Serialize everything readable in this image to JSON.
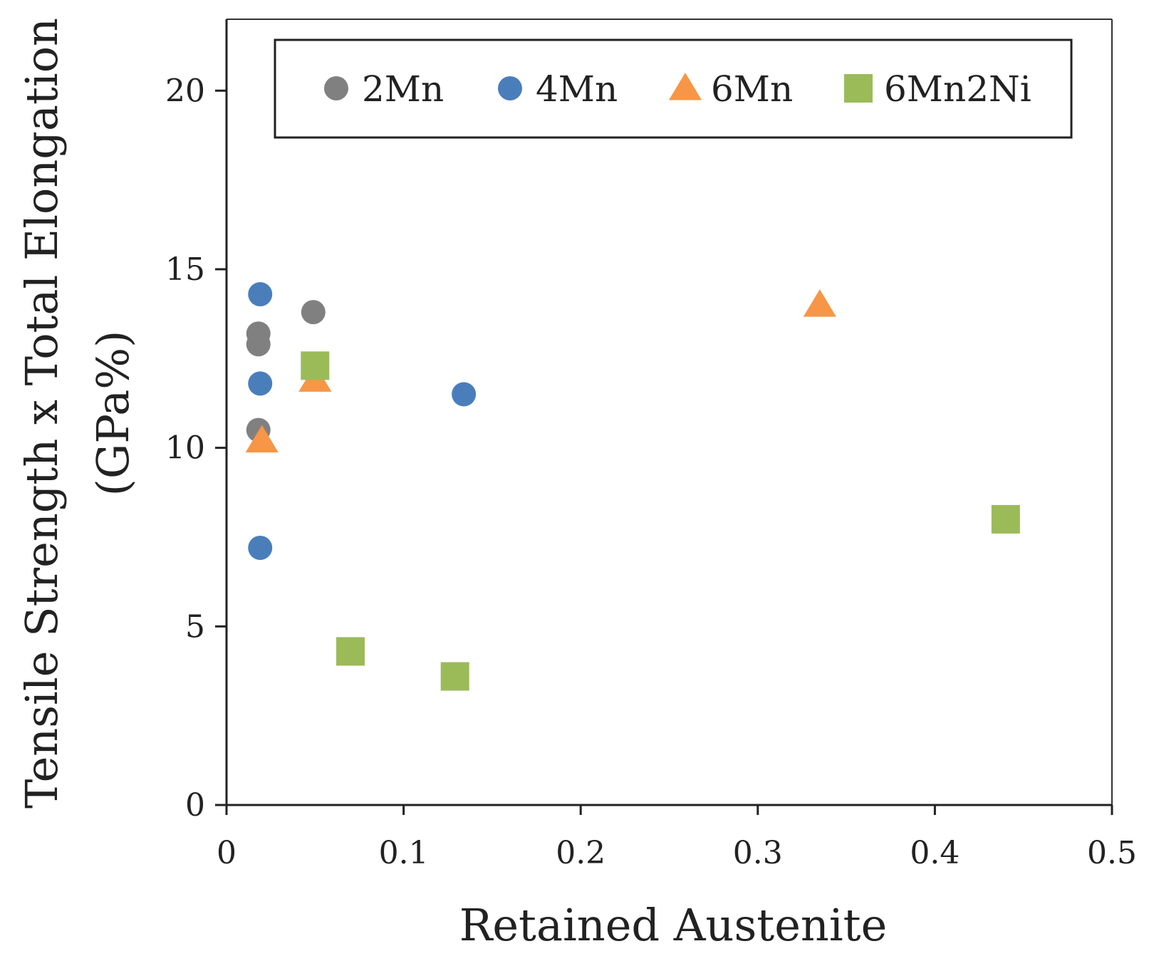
{
  "chart_data": {
    "type": "scatter",
    "title": "",
    "xlabel": "Retained Austenite",
    "ylabel_line1": "Tensile Strength x Total Elongation",
    "ylabel_line2": "(GPa%)",
    "xlim": [
      0,
      0.5
    ],
    "ylim": [
      0,
      22
    ],
    "x_ticks": [
      0,
      0.1,
      0.2,
      0.3,
      0.4,
      0.5
    ],
    "x_tick_labels": [
      "0",
      "0.1",
      "0.2",
      "0.3",
      "0.4",
      "0.5"
    ],
    "y_ticks": [
      0,
      5,
      10,
      15,
      20
    ],
    "y_tick_labels": [
      "0",
      "5",
      "10",
      "15",
      "20"
    ],
    "grid": false,
    "legend_position": "top",
    "series": [
      {
        "name": "2Mn",
        "marker": "circle",
        "color": "#808080",
        "points": [
          [
            0.018,
            13.2
          ],
          [
            0.018,
            12.9
          ],
          [
            0.018,
            10.5
          ],
          [
            0.049,
            13.8
          ]
        ]
      },
      {
        "name": "4Mn",
        "marker": "circle",
        "color": "#4a7ebb",
        "points": [
          [
            0.019,
            14.3
          ],
          [
            0.019,
            11.8
          ],
          [
            0.019,
            7.2
          ],
          [
            0.134,
            11.5
          ]
        ]
      },
      {
        "name": "6Mn",
        "marker": "triangle",
        "color": "#f79646",
        "points": [
          [
            0.02,
            10.2
          ],
          [
            0.05,
            11.9
          ],
          [
            0.335,
            14.0
          ]
        ]
      },
      {
        "name": "6Mn2Ni",
        "marker": "square",
        "color": "#9bbb59",
        "points": [
          [
            0.05,
            12.3
          ],
          [
            0.07,
            4.3
          ],
          [
            0.129,
            3.6
          ],
          [
            0.44,
            8.0
          ]
        ]
      }
    ]
  }
}
